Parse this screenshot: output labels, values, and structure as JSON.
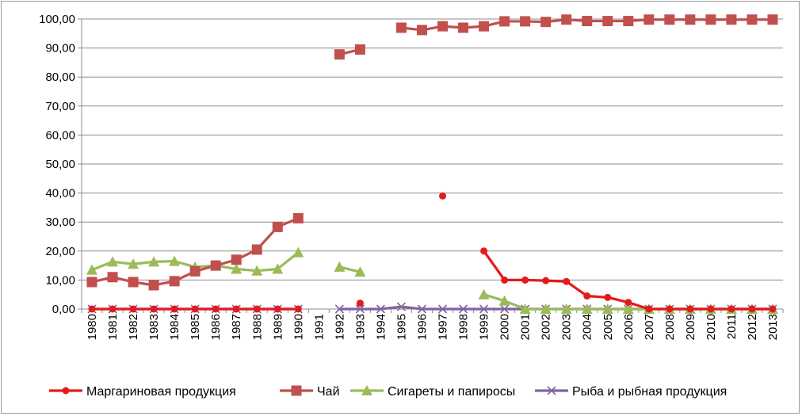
{
  "chart_data": {
    "type": "line",
    "title": "",
    "xlabel": "",
    "ylabel": "",
    "ylim": [
      0,
      100
    ],
    "y_ticks": [
      "0,00",
      "10,00",
      "20,00",
      "30,00",
      "40,00",
      "50,00",
      "60,00",
      "70,00",
      "80,00",
      "90,00",
      "100,00"
    ],
    "categories": [
      "1980",
      "1981",
      "1982",
      "1983",
      "1984",
      "1985",
      "1986",
      "1987",
      "1988",
      "1989",
      "1990",
      "1991",
      "1992",
      "1993",
      "1994",
      "1995",
      "1996",
      "1997",
      "1998",
      "1999",
      "2000",
      "2001",
      "2002",
      "2003",
      "2004",
      "2005",
      "2006",
      "2007",
      "2008",
      "2009",
      "2010",
      "2011",
      "2012",
      "2013"
    ],
    "grid": "horizontal",
    "legend_position": "bottom",
    "series": [
      {
        "name": "Маргариновая продукция",
        "color": "#e31b1b",
        "marker": "circle",
        "values": [
          0,
          0,
          0,
          0,
          0,
          0,
          0,
          0,
          0,
          0,
          0,
          null,
          null,
          2,
          null,
          null,
          null,
          39,
          null,
          20,
          10,
          10,
          9.8,
          9.5,
          4.5,
          4,
          2.3,
          0,
          0,
          0,
          0,
          0,
          0,
          0
        ]
      },
      {
        "name": "Чай",
        "color": "#c0504d",
        "marker": "square",
        "values": [
          9.3,
          11,
          9.3,
          8.2,
          9.6,
          13,
          15,
          17,
          20.5,
          28.3,
          31.3,
          null,
          87.8,
          89.5,
          null,
          97,
          96.2,
          97.5,
          97,
          97.5,
          99.2,
          99.2,
          99,
          99.8,
          99.3,
          99.3,
          99.3,
          99.8,
          99.8,
          99.8,
          99.8,
          99.8,
          99.8,
          99.8
        ]
      },
      {
        "name": "Сигареты и папиросы",
        "color": "#9bbb59",
        "marker": "triangle",
        "values": [
          13.5,
          16.3,
          15.5,
          16.3,
          16.5,
          14.5,
          15,
          13.8,
          13.2,
          13.8,
          19.5,
          null,
          14.5,
          12.8,
          null,
          null,
          null,
          null,
          null,
          5,
          2.8,
          0,
          0,
          0,
          0,
          0,
          0,
          0,
          0,
          0,
          0,
          0,
          0,
          0
        ]
      },
      {
        "name": "Рыба и рыбная продукция",
        "color": "#8064a2",
        "marker": "x",
        "values": [
          0,
          0,
          0,
          0,
          0,
          0,
          0,
          0,
          0,
          0,
          0,
          null,
          0,
          0,
          0,
          0.8,
          0,
          0,
          0,
          0,
          0,
          0,
          0,
          0,
          0,
          0,
          0,
          0,
          0,
          0,
          0,
          0,
          0,
          0
        ]
      }
    ]
  }
}
